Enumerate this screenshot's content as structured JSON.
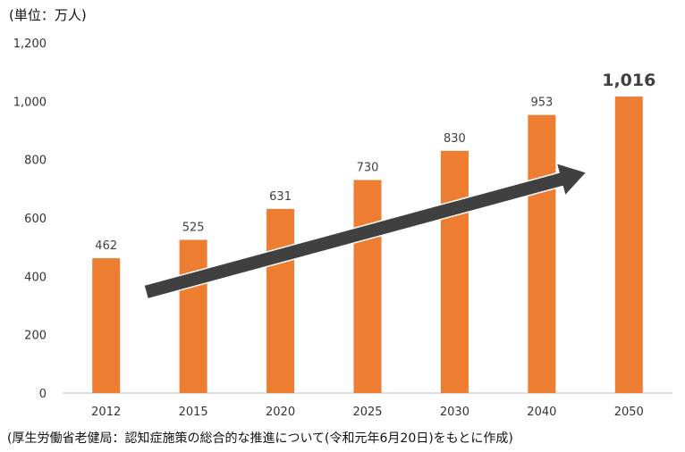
{
  "unit_label": "(単位：万人)",
  "source_note": "(厚生労働省老健局：認知症施策の総合的な推進について(令和元年6月20日)をもとに作成)",
  "colors": {
    "bar": "#ED7D31",
    "arrow_fill": "#404040",
    "arrow_stroke": "#ffffff",
    "axis": "#bfbfbf"
  },
  "chart_data": {
    "type": "bar",
    "categories": [
      "2012",
      "2015",
      "2020",
      "2025",
      "2030",
      "2040",
      "2050"
    ],
    "values": [
      462,
      525,
      631,
      730,
      830,
      953,
      1016
    ],
    "value_labels": [
      "462",
      "525",
      "631",
      "730",
      "830",
      "953",
      "1,016"
    ],
    "ylim": [
      0,
      1200
    ],
    "yticks": [
      0,
      200,
      400,
      600,
      800,
      1000,
      1200
    ],
    "ytick_labels": [
      "0",
      "200",
      "400",
      "600",
      "800",
      "1,000",
      "1,200"
    ],
    "grid": false,
    "annotation": "upward-trend-arrow"
  }
}
